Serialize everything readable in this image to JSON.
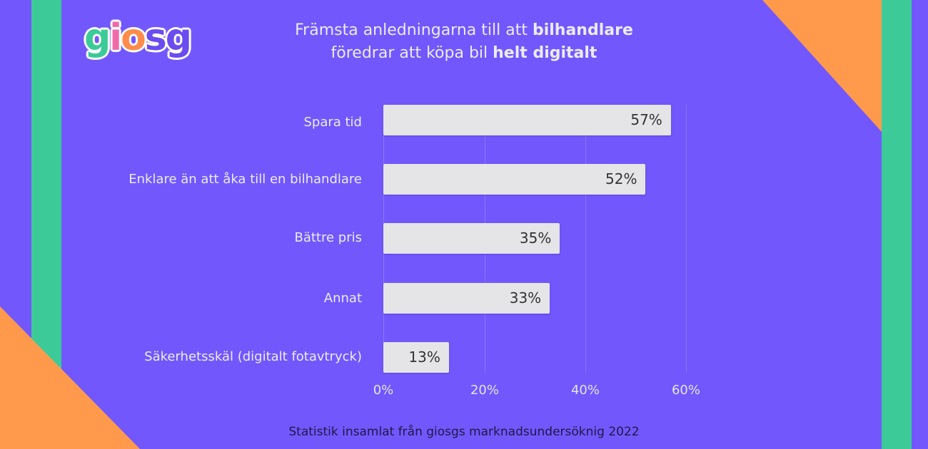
{
  "theme": {
    "background": "#7257fd",
    "stripe_color": "#3ccb98",
    "corner_color": "#ff9a4d",
    "bar_color": "#e5e5e8",
    "text_light": "#ecebf7",
    "text_dark": "#1e1a44"
  },
  "logo": {
    "letters": [
      "g",
      "i",
      "o",
      "s",
      "g"
    ],
    "colors": [
      "#3ccb98",
      "#f06aa8",
      "#ff8c4a",
      "#6a4cf0",
      "#6a4cf0"
    ]
  },
  "title": {
    "line1_normal": "Främsta anledningarna till att ",
    "line1_bold": "bilhandlare",
    "line2_normal": "föredrar att köpa bil ",
    "line2_bold": "helt digitalt"
  },
  "footer": "Statistik insamlat från giosgs marknadsundersöknig 2022",
  "chart_data": {
    "type": "bar",
    "orientation": "horizontal",
    "title": "Främsta anledningarna till att bilhandlare föredrar att köpa bil helt digitalt",
    "categories": [
      "Spara tid",
      "Enklare än att åka till en bilhandlare",
      "Bättre pris",
      "Annat",
      "Säkerhetsskäl (digitalt fotavtryck)"
    ],
    "values": [
      57,
      52,
      35,
      33,
      13
    ],
    "value_labels": [
      "57%",
      "52%",
      "35%",
      "33%",
      "13%"
    ],
    "xlabel": "",
    "ylabel": "",
    "xlim": [
      0,
      60
    ],
    "x_ticks": [
      "0%",
      "20%",
      "40%",
      "60%"
    ],
    "grid": true,
    "legend": null,
    "source_note": "Statistik insamlat från giosgs marknadsundersöknig 2022"
  }
}
